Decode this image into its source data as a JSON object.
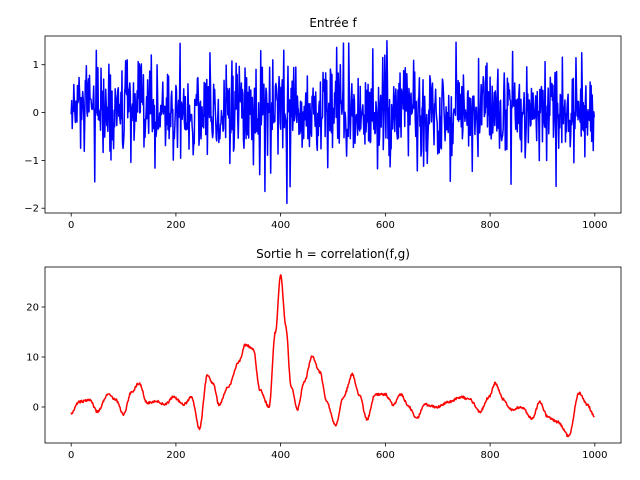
{
  "chart_data": [
    {
      "type": "line",
      "title": "Entrée f",
      "xlabel": "",
      "ylabel": "",
      "xlim": [
        -50,
        1050
      ],
      "ylim": [
        -2.1,
        1.6
      ],
      "xticks": [
        0,
        200,
        400,
        600,
        800,
        1000
      ],
      "yticks": [
        -2,
        -1,
        0,
        1
      ],
      "series": [
        {
          "color": "#0000ff",
          "n_points": 1000,
          "x_start": 0,
          "x_step": 1,
          "mean": 0.0,
          "std": 0.5,
          "min": -1.9,
          "max": 1.5,
          "features": [
            {
              "x": 45,
              "y": -1.45
            },
            {
              "x": 48,
              "y": 1.3
            },
            {
              "x": 265,
              "y": 1.25
            },
            {
              "x": 370,
              "y": -1.65
            },
            {
              "x": 385,
              "y": 1.1
            },
            {
              "x": 412,
              "y": -1.9
            },
            {
              "x": 418,
              "y": -1.55
            },
            {
              "x": 520,
              "y": 1.45
            },
            {
              "x": 530,
              "y": 1.45
            },
            {
              "x": 840,
              "y": -1.5
            },
            {
              "x": 975,
              "y": 1.25
            }
          ]
        }
      ]
    },
    {
      "type": "line",
      "title": "Sortie h = correlation(f,g)",
      "xlabel": "",
      "ylabel": "",
      "xlim": [
        -50,
        1050
      ],
      "ylim": [
        -7.2,
        28
      ],
      "xticks": [
        0,
        200,
        400,
        600,
        800,
        1000
      ],
      "yticks": [
        0,
        10,
        20
      ],
      "series": [
        {
          "color": "#ff0000",
          "n_points": 1000,
          "x_start": 0,
          "x_step": 1,
          "keypoints": [
            [
              0,
              -1.2
            ],
            [
              15,
              1.0
            ],
            [
              35,
              1.5
            ],
            [
              50,
              -1.0
            ],
            [
              70,
              2.5
            ],
            [
              85,
              1.5
            ],
            [
              100,
              -1.5
            ],
            [
              115,
              3.0
            ],
            [
              130,
              4.8
            ],
            [
              145,
              0.8
            ],
            [
              160,
              1.2
            ],
            [
              180,
              0.5
            ],
            [
              195,
              2.0
            ],
            [
              215,
              0.5
            ],
            [
              230,
              2.0
            ],
            [
              245,
              -4.3
            ],
            [
              260,
              6.3
            ],
            [
              272,
              4.5
            ],
            [
              282,
              0.5
            ],
            [
              300,
              4.0
            ],
            [
              320,
              9.0
            ],
            [
              333,
              12.5
            ],
            [
              348,
              11.5
            ],
            [
              360,
              3.5
            ],
            [
              378,
              0.0
            ],
            [
              390,
              15.0
            ],
            [
              400,
              26.3
            ],
            [
              410,
              16.0
            ],
            [
              420,
              4.0
            ],
            [
              432,
              -0.5
            ],
            [
              445,
              5.0
            ],
            [
              460,
              10.0
            ],
            [
              475,
              7.0
            ],
            [
              488,
              1.0
            ],
            [
              505,
              -3.8
            ],
            [
              520,
              2.0
            ],
            [
              537,
              6.5
            ],
            [
              550,
              2.5
            ],
            [
              565,
              -2.5
            ],
            [
              580,
              2.5
            ],
            [
              600,
              2.5
            ],
            [
              615,
              0.5
            ],
            [
              630,
              2.5
            ],
            [
              645,
              0.0
            ],
            [
              660,
              -2.3
            ],
            [
              675,
              0.5
            ],
            [
              700,
              0.0
            ],
            [
              720,
              1.0
            ],
            [
              745,
              2.0
            ],
            [
              762,
              1.5
            ],
            [
              780,
              -1.0
            ],
            [
              798,
              2.0
            ],
            [
              810,
              4.8
            ],
            [
              825,
              1.5
            ],
            [
              840,
              -0.5
            ],
            [
              860,
              0.0
            ],
            [
              880,
              -2.3
            ],
            [
              895,
              1.0
            ],
            [
              910,
              -2.0
            ],
            [
              930,
              -3.0
            ],
            [
              950,
              -5.8
            ],
            [
              970,
              2.8
            ],
            [
              985,
              0.5
            ],
            [
              1000,
              -2.0
            ]
          ]
        }
      ]
    }
  ]
}
